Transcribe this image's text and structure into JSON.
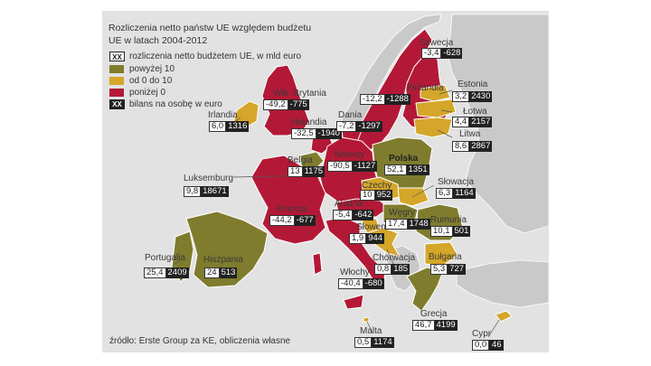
{
  "title_lines": [
    "Rozliczenia netto państw UE względem budżetu",
    "UE w latach 2004-2012"
  ],
  "legend": {
    "box_label": "rozliczenia netto budżetem UE, w mld euro",
    "box_marker": "XX",
    "items": [
      {
        "label": "powyżej 10",
        "color": "#7f7c2e"
      },
      {
        "label": "od 0 do 10",
        "color": "#d4a62a"
      },
      {
        "label": "poniżej 0",
        "color": "#b31936"
      }
    ],
    "per_capita_label": "bilans na osobę w euro",
    "per_capita_marker": "XX"
  },
  "colors": {
    "background": "#ffffff",
    "map_frame": "#e2e2e2",
    "non_eu": "#c9c9c9",
    "sea": "#e6e6e6"
  },
  "countries": [
    {
      "name": "Szwecja",
      "net": "-3,4",
      "per_capita": "-628",
      "category": "poniżej 0"
    },
    {
      "name": "Estonia",
      "net": "3,2",
      "per_capita": "2430",
      "category": "od 0 do 10"
    },
    {
      "name": "Łotwa",
      "net": "4,4",
      "per_capita": "2157",
      "category": "od 0 do 10"
    },
    {
      "name": "Litwa",
      "net": "8,6",
      "per_capita": "2867",
      "category": "od 0 do 10"
    },
    {
      "name": "Wielka Brytania",
      "name_visible": "Wlk. Brytania",
      "net": "-49,2",
      "per_capita": "-775",
      "category": "poniżej 0"
    },
    {
      "name": "Irlandia",
      "net": "6,0",
      "per_capita": "1316",
      "category": "od 0 do 10"
    },
    {
      "name": "Holandia",
      "net": "-32,5",
      "per_capita": "-1940",
      "category": "poniżej 0"
    },
    {
      "name": "Dania",
      "net": "-7,2",
      "per_capita": "-1297",
      "category": "poniżej 0"
    },
    {
      "name": "Finlandia",
      "net": "-12,2",
      "per_capita": "-1288",
      "category": "poniżej 0"
    },
    {
      "name": "Belgia",
      "net": "13",
      "per_capita": "1175",
      "category": "powyżej 10"
    },
    {
      "name": "Luksemburg",
      "net": "9,8",
      "per_capita": "18671",
      "category": "od 0 do 10"
    },
    {
      "name": "Niemcy",
      "net": "-90,5",
      "per_capita": "-1127",
      "category": "poniżej 0"
    },
    {
      "name": "Polska",
      "net": "52,1",
      "per_capita": "1351",
      "category": "powyżej 10"
    },
    {
      "name": "Czechy",
      "net": "10",
      "per_capita": "952",
      "category": "od 0 do 10"
    },
    {
      "name": "Słowacja",
      "net": "6,3",
      "per_capita": "1164",
      "category": "od 0 do 10"
    },
    {
      "name": "Francja",
      "net": "-44,2",
      "per_capita": "-677",
      "category": "poniżej 0"
    },
    {
      "name": "Austria",
      "net": "-5,4",
      "per_capita": "-642",
      "category": "poniżej 0"
    },
    {
      "name": "Węgry",
      "net": "17,4",
      "per_capita": "1748",
      "category": "powyżej 10"
    },
    {
      "name": "Rumunia",
      "net": "10,1",
      "per_capita": "501",
      "category": "powyżej 10"
    },
    {
      "name": "Słowenia",
      "net": "1,9",
      "per_capita": "944",
      "category": "od 0 do 10"
    },
    {
      "name": "Chorwacja",
      "net": "0,8",
      "per_capita": "185",
      "category": "od 0 do 10"
    },
    {
      "name": "Portugalia",
      "net": "25,4",
      "per_capita": "2409",
      "category": "powyżej 10"
    },
    {
      "name": "Hiszpania",
      "net": "24",
      "per_capita": "513",
      "category": "powyżej 10"
    },
    {
      "name": "Włochy",
      "net": "-40,4",
      "per_capita": "-680",
      "category": "poniżej 0"
    },
    {
      "name": "Bułgaria",
      "net": "5,3",
      "per_capita": "727",
      "category": "od 0 do 10"
    },
    {
      "name": "Grecja",
      "net": "46,7",
      "per_capita": "4199",
      "category": "powyżej 10"
    },
    {
      "name": "Malta",
      "net": "0,5",
      "per_capita": "1174",
      "category": "od 0 do 10"
    },
    {
      "name": "Cypr",
      "net": "0,0",
      "per_capita": "46",
      "category": "od 0 do 10"
    }
  ],
  "source": "źródło: Erste Group za KE, obliczenia własne"
}
